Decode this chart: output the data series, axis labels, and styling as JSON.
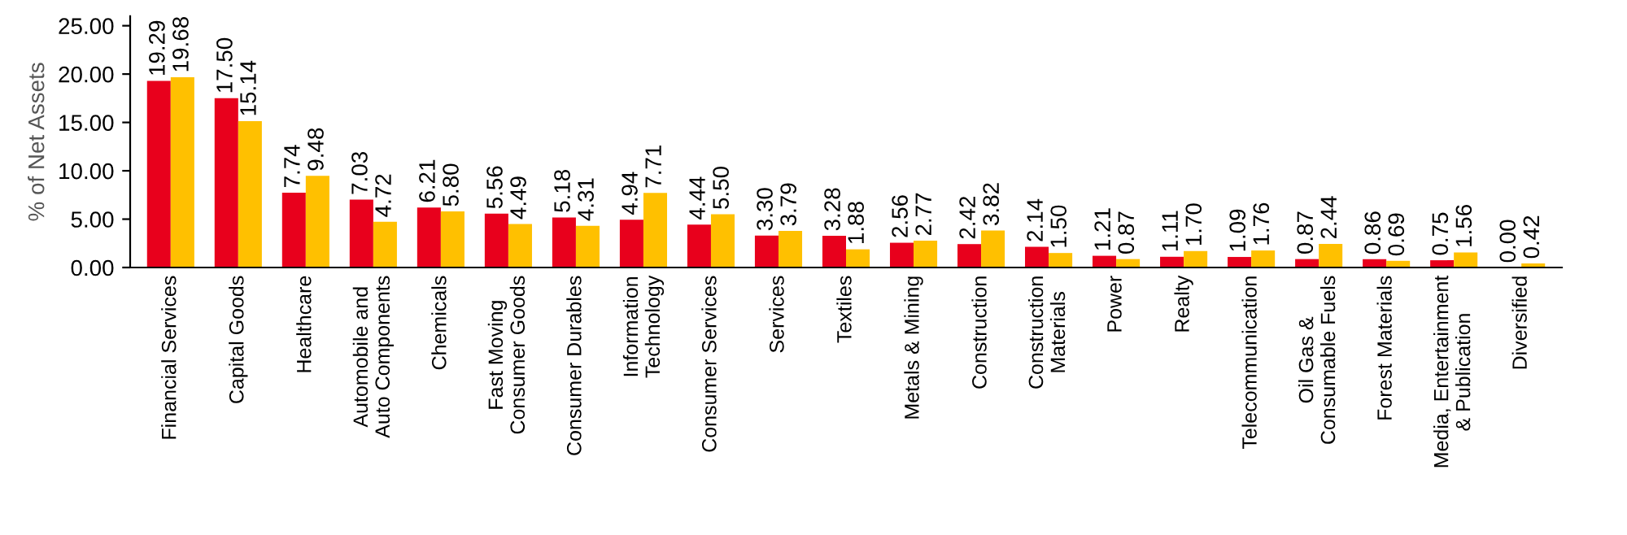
{
  "chart_data": {
    "type": "bar",
    "ylabel": "% of Net Assets",
    "categories": [
      "Financial Services",
      "Capital Goods",
      "Healthcare",
      "Automobile and\nAuto Components",
      "Chemicals",
      "Fast Moving\nConsumer Goods",
      "Consumer Durables",
      "Information\nTechnology",
      "Consumer Services",
      "Services",
      "Textiles",
      "Metals & Mining",
      "Construction",
      "Construction\nMaterials",
      "Power",
      "Realty",
      "Telecommunication",
      "Oil Gas &\nConsumable Fuels",
      "Forest Materials",
      "Media, Entertainment\n& Publication",
      "Diversified"
    ],
    "series": [
      {
        "color": "#e8001c",
        "values": [
          19.29,
          17.5,
          7.74,
          7.03,
          6.21,
          5.56,
          5.18,
          4.94,
          4.44,
          3.3,
          3.28,
          2.56,
          2.42,
          2.14,
          1.21,
          1.11,
          1.09,
          0.87,
          0.86,
          0.75,
          0.0
        ],
        "value_labels": [
          "19.29",
          "17.50",
          "7.74",
          "7.03",
          "6.21",
          "5.56",
          "5.18",
          "4.94",
          "4.44",
          "3.30",
          "3.28",
          "2.56",
          "2.42",
          "2.14",
          "1.21",
          "1.11",
          "1.09",
          "0.87",
          "0.86",
          "0.75",
          "0.00"
        ]
      },
      {
        "color": "#ffc000",
        "values": [
          19.68,
          15.14,
          9.48,
          4.72,
          5.8,
          4.49,
          4.31,
          7.71,
          5.5,
          3.79,
          1.88,
          2.77,
          3.82,
          1.5,
          0.87,
          1.7,
          1.76,
          2.44,
          0.69,
          1.56,
          0.42
        ],
        "value_labels": [
          "19.68",
          "15.14",
          "9.48",
          "4.72",
          "5.80",
          "4.49",
          "4.31",
          "7.71",
          "5.50",
          "3.79",
          "1.88",
          "2.77",
          "3.82",
          "1.50",
          "0.87",
          "1.70",
          "1.76",
          "2.44",
          "0.69",
          "1.56",
          "0.42"
        ]
      }
    ],
    "ylim": [
      0,
      26
    ],
    "yticks": [
      {
        "value": 0,
        "label": "0.00"
      },
      {
        "value": 5,
        "label": "5.00"
      },
      {
        "value": 10,
        "label": "10.00"
      },
      {
        "value": 15,
        "label": "15.00"
      },
      {
        "value": 20,
        "label": "20.00"
      },
      {
        "value": 25,
        "label": "25.00"
      }
    ],
    "grid": false
  }
}
